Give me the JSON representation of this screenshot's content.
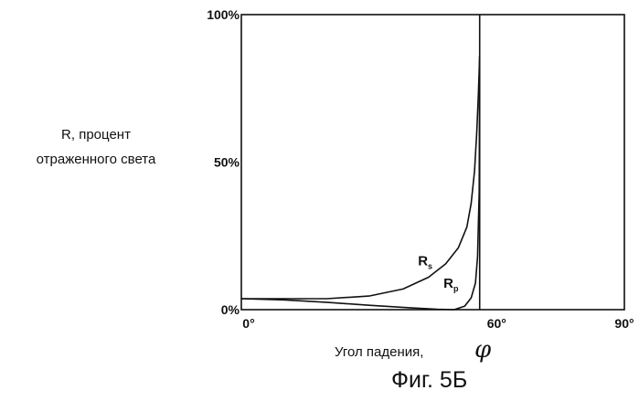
{
  "chart_data": {
    "type": "line",
    "title": "",
    "ylabel_lines": [
      "R, процент",
      "отраженного света"
    ],
    "xlabel": "Угол падения,",
    "xlabel_symbol": "φ",
    "caption": "Фиг. 5Б",
    "xlim": [
      0,
      90
    ],
    "ylim": [
      0,
      100
    ],
    "x_ticks": [
      {
        "value": 0,
        "label": "0°"
      },
      {
        "value": 60,
        "label": "60°"
      },
      {
        "value": 90,
        "label": "90°"
      }
    ],
    "y_ticks": [
      {
        "value": 0,
        "label": "0%"
      },
      {
        "value": 50,
        "label": "50%"
      },
      {
        "value": 100,
        "label": "100%"
      }
    ],
    "grid": false,
    "critical_angle": 56,
    "series": [
      {
        "name": "Rs",
        "label_main": "R",
        "label_sub": "s",
        "x": [
          0,
          10,
          20,
          30,
          38,
          44,
          48,
          51,
          53,
          54,
          54.8,
          55.3,
          55.7,
          56
        ],
        "y": [
          3.7,
          3.7,
          3.7,
          4.6,
          7,
          11,
          15.5,
          21,
          28,
          36,
          47,
          60,
          73,
          86
        ]
      },
      {
        "name": "Rp",
        "label_main": "R",
        "label_sub": "p",
        "x": [
          0,
          10,
          20,
          30,
          40,
          46,
          50,
          52.5,
          54,
          55,
          55.5,
          55.9,
          56
        ],
        "y": [
          3.7,
          3.3,
          2.5,
          1.5,
          0.6,
          0.15,
          0,
          1.2,
          4,
          9,
          18,
          40,
          86
        ]
      }
    ]
  }
}
